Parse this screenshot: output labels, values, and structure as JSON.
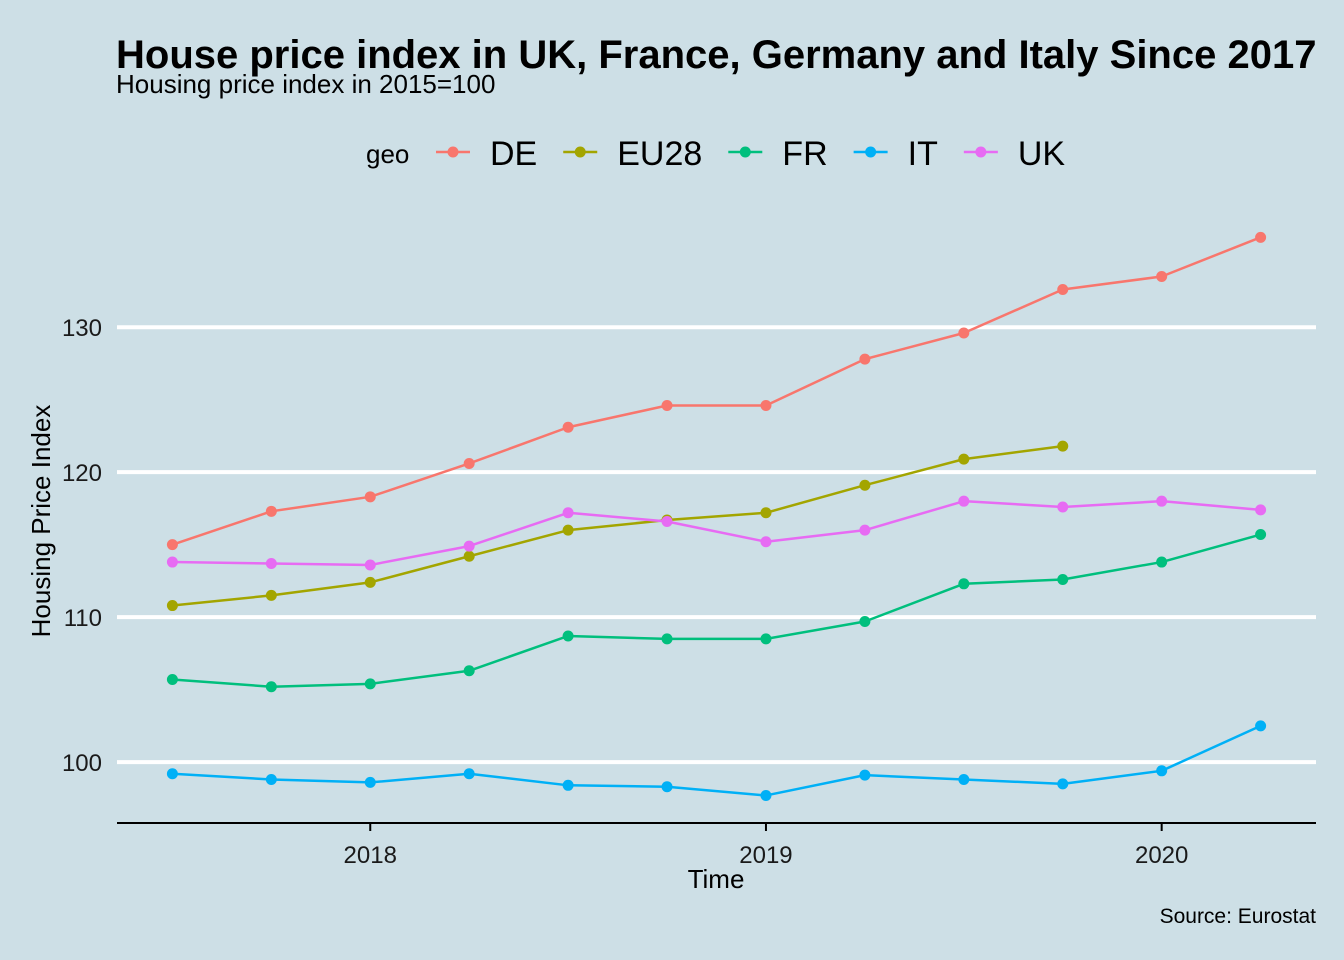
{
  "chart_data": {
    "type": "line",
    "title": "House price index in UK, France, Germany and Italy Since 2017",
    "subtitle": "Housing price index in 2015=100",
    "xlabel": "Time",
    "ylabel": "Housing Price Index",
    "caption": "Source: Eurostat",
    "legend_title": "geo",
    "legend_position": "top",
    "grid": "horizontal-major",
    "ylim": [
      95.8,
      140.5
    ],
    "xlim": [
      2017.36,
      2020.39
    ],
    "y_ticks": [
      "100",
      "110",
      "120",
      "130"
    ],
    "x_ticks": [
      "2018",
      "2019",
      "2020"
    ],
    "x": [
      2017.5,
      2017.75,
      2018.0,
      2018.25,
      2018.5,
      2018.75,
      2019.0,
      2019.25,
      2019.5,
      2019.75,
      2020.0,
      2020.25
    ],
    "series": [
      {
        "name": "DE",
        "color": "#f8766d",
        "values": [
          115.0,
          117.3,
          118.3,
          120.6,
          123.1,
          124.6,
          124.6,
          127.8,
          129.6,
          132.6,
          133.5,
          136.2
        ]
      },
      {
        "name": "EU28",
        "color": "#a3a500",
        "values": [
          110.8,
          111.5,
          112.4,
          114.2,
          116.0,
          116.7,
          117.2,
          119.1,
          120.9,
          121.8,
          null,
          null
        ]
      },
      {
        "name": "FR",
        "color": "#00bf7d",
        "values": [
          105.7,
          105.2,
          105.4,
          106.3,
          108.7,
          108.5,
          108.5,
          109.7,
          112.3,
          112.6,
          113.8,
          115.7
        ]
      },
      {
        "name": "IT",
        "color": "#00b0f6",
        "values": [
          99.2,
          98.8,
          98.6,
          99.2,
          98.4,
          98.3,
          97.7,
          99.1,
          98.8,
          98.5,
          99.4,
          102.5
        ]
      },
      {
        "name": "UK",
        "color": "#e76bf3",
        "values": [
          113.8,
          113.7,
          113.6,
          114.9,
          117.2,
          116.6,
          115.2,
          116.0,
          118.0,
          117.6,
          118.0,
          117.4
        ]
      }
    ]
  }
}
